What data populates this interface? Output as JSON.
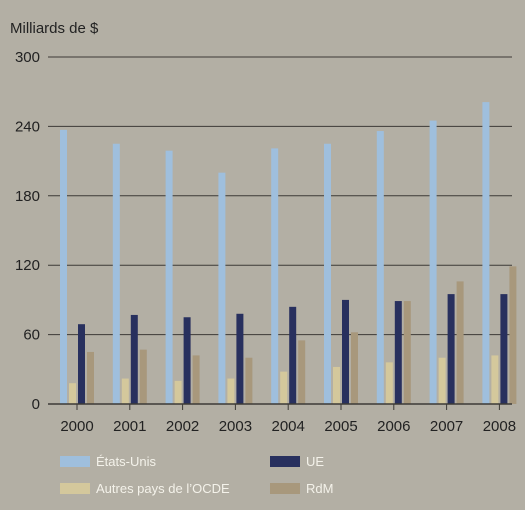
{
  "chart_data": {
    "type": "bar",
    "ylabel": "Milliards de $",
    "ylim": [
      0,
      300
    ],
    "yticks": [
      0,
      60,
      120,
      180,
      240,
      300
    ],
    "categories": [
      "2000",
      "2001",
      "2002",
      "2003",
      "2004",
      "2005",
      "2006",
      "2007",
      "2008"
    ],
    "series": [
      {
        "name": "États-Unis",
        "color": "#9fbfdd",
        "values": [
          237,
          225,
          219,
          200,
          221,
          225,
          236,
          245,
          261
        ]
      },
      {
        "name": "UE",
        "color": "#28305e",
        "values": [
          69,
          77,
          75,
          78,
          84,
          90,
          89,
          95,
          95
        ]
      },
      {
        "name": "Autres pays de l’OCDE",
        "color": "#d4c89c",
        "values": [
          18,
          22,
          20,
          22,
          28,
          32,
          36,
          40,
          42
        ]
      },
      {
        "name": "RdM",
        "color": "#a8987c",
        "values": [
          45,
          47,
          42,
          40,
          55,
          62,
          89,
          106,
          119
        ]
      }
    ],
    "grid": true,
    "legend_position": "bottom"
  }
}
